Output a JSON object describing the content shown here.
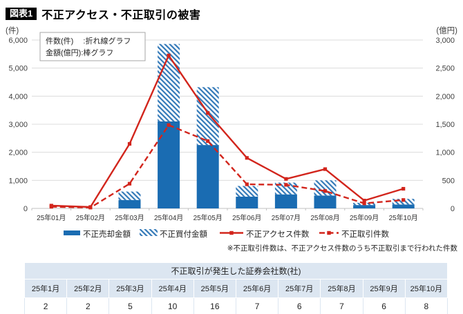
{
  "header": {
    "badge": "図表1",
    "title": "不正アクセス・不正取引の被害"
  },
  "chart_data": {
    "type": "bar+line",
    "title": "不正アクセス・不正取引の被害",
    "categories": [
      "25年01月",
      "25年02月",
      "25年03月",
      "25年04月",
      "25年05月",
      "25年06月",
      "25年07月",
      "25年08月",
      "25年09月",
      "25年10月"
    ],
    "left_axis": {
      "label": "(件)",
      "min": 0,
      "max": 6000,
      "step": 1000,
      "ticks": [
        "6,000",
        "5,000",
        "4,000",
        "3,000",
        "2,000",
        "1,000",
        "0"
      ]
    },
    "right_axis": {
      "label": "(億円)",
      "min": 0,
      "max": 3000,
      "step": 500,
      "ticks": [
        "3,000",
        "2,500",
        "2,000",
        "1,500",
        "1,000",
        "500",
        "0"
      ]
    },
    "series": [
      {
        "name": "不正売却金額",
        "type": "bar",
        "axis": "right",
        "style": "solid",
        "values": [
          0,
          0,
          150,
          1550,
          1130,
          210,
          250,
          230,
          60,
          70
        ]
      },
      {
        "name": "不正買付金額",
        "type": "bar",
        "axis": "right",
        "style": "hatched",
        "values": [
          0,
          0,
          150,
          1380,
          1030,
          190,
          210,
          270,
          40,
          100
        ]
      },
      {
        "name": "不正アクセス件数",
        "type": "line",
        "axis": "left",
        "style": "solid",
        "values": [
          100,
          50,
          2300,
          5450,
          3400,
          1800,
          1050,
          1400,
          280,
          700
        ]
      },
      {
        "name": "不正取引件数",
        "type": "line",
        "axis": "left",
        "style": "dashed",
        "values": [
          60,
          30,
          880,
          2970,
          2400,
          860,
          840,
          620,
          180,
          300
        ]
      }
    ],
    "inner_legend": {
      "line1": "件数(件)　 :折れ線グラフ",
      "line2": "金額(億円):棒グラフ"
    },
    "note": "※不正取引件数は、不正アクセス件数のうち不正取引まで行われた件数",
    "grid": true,
    "legend_position": "bottom",
    "bars_stacked": true
  },
  "table": {
    "title": "不正取引が発生した証券会社数(社)",
    "headers": [
      "25年1月",
      "25年2月",
      "25年3月",
      "25年4月",
      "25年5月",
      "25年6月",
      "25年7月",
      "25年8月",
      "25年9月",
      "25年10月"
    ],
    "values": [
      "2",
      "2",
      "5",
      "10",
      "16",
      "7",
      "6",
      "7",
      "6",
      "8"
    ]
  },
  "colors": {
    "bar_blue": "#1a6cb2",
    "hatch_blue": "#3379b8",
    "line_red": "#d2251c",
    "grid": "#dcdcdc",
    "baseline": "#c0c0c0",
    "axis_text": "#404040",
    "table_fill": "#dce6f1"
  }
}
